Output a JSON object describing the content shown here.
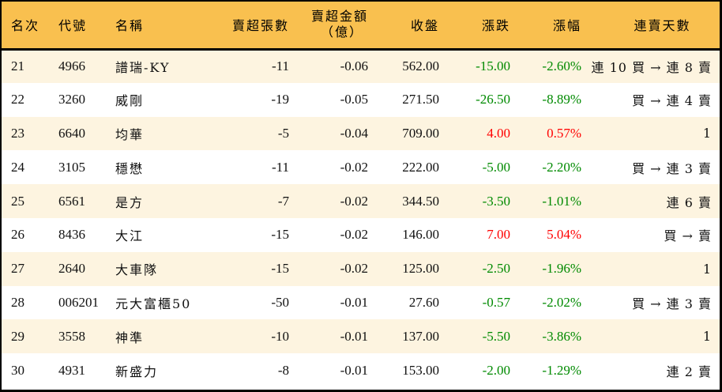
{
  "table": {
    "headers": {
      "rank": "名次",
      "code": "代號",
      "name": "名稱",
      "net_sell_volume": "賣超張數",
      "net_sell_amount_line1": "賣超金額",
      "net_sell_amount_line2": "（億）",
      "close": "收盤",
      "change": "漲跌",
      "change_pct": "漲幅",
      "streak": "連賣天數"
    },
    "colors": {
      "header_bg": "#f9c04f",
      "row_odd_bg": "#fdf4e0",
      "row_even_bg": "#ffffff",
      "up": "#ff0000",
      "down": "#008a00"
    },
    "rows": [
      {
        "rank": "21",
        "code": "4966",
        "name": "譜瑞-KY",
        "vol": "-11",
        "amt": "-0.06",
        "close": "562.00",
        "chg": "-15.00",
        "pct": "-2.60%",
        "dir": "down",
        "streak": "連 10 買 → 連 8 賣"
      },
      {
        "rank": "22",
        "code": "3260",
        "name": "威剛",
        "vol": "-19",
        "amt": "-0.05",
        "close": "271.50",
        "chg": "-26.50",
        "pct": "-8.89%",
        "dir": "down",
        "streak": "買 → 連 4 賣"
      },
      {
        "rank": "23",
        "code": "6640",
        "name": "均華",
        "vol": "-5",
        "amt": "-0.04",
        "close": "709.00",
        "chg": "4.00",
        "pct": "0.57%",
        "dir": "up",
        "streak": "1"
      },
      {
        "rank": "24",
        "code": "3105",
        "name": "穩懋",
        "vol": "-11",
        "amt": "-0.02",
        "close": "222.00",
        "chg": "-5.00",
        "pct": "-2.20%",
        "dir": "down",
        "streak": "買 → 連 3 賣"
      },
      {
        "rank": "25",
        "code": "6561",
        "name": "是方",
        "vol": "-7",
        "amt": "-0.02",
        "close": "344.50",
        "chg": "-3.50",
        "pct": "-1.01%",
        "dir": "down",
        "streak": "連 6 賣"
      },
      {
        "rank": "26",
        "code": "8436",
        "name": "大江",
        "vol": "-15",
        "amt": "-0.02",
        "close": "146.00",
        "chg": "7.00",
        "pct": "5.04%",
        "dir": "up",
        "streak": "買 → 賣"
      },
      {
        "rank": "27",
        "code": "2640",
        "name": "大車隊",
        "vol": "-15",
        "amt": "-0.02",
        "close": "125.00",
        "chg": "-2.50",
        "pct": "-1.96%",
        "dir": "down",
        "streak": "1"
      },
      {
        "rank": "28",
        "code": "006201",
        "name": "元大富櫃50",
        "vol": "-50",
        "amt": "-0.01",
        "close": "27.60",
        "chg": "-0.57",
        "pct": "-2.02%",
        "dir": "down",
        "streak": "買 → 連 3 賣"
      },
      {
        "rank": "29",
        "code": "3558",
        "name": "神準",
        "vol": "-10",
        "amt": "-0.01",
        "close": "137.00",
        "chg": "-5.50",
        "pct": "-3.86%",
        "dir": "down",
        "streak": "1"
      },
      {
        "rank": "30",
        "code": "4931",
        "name": "新盛力",
        "vol": "-8",
        "amt": "-0.01",
        "close": "153.00",
        "chg": "-2.00",
        "pct": "-1.29%",
        "dir": "down",
        "streak": "連 2 賣"
      }
    ]
  }
}
